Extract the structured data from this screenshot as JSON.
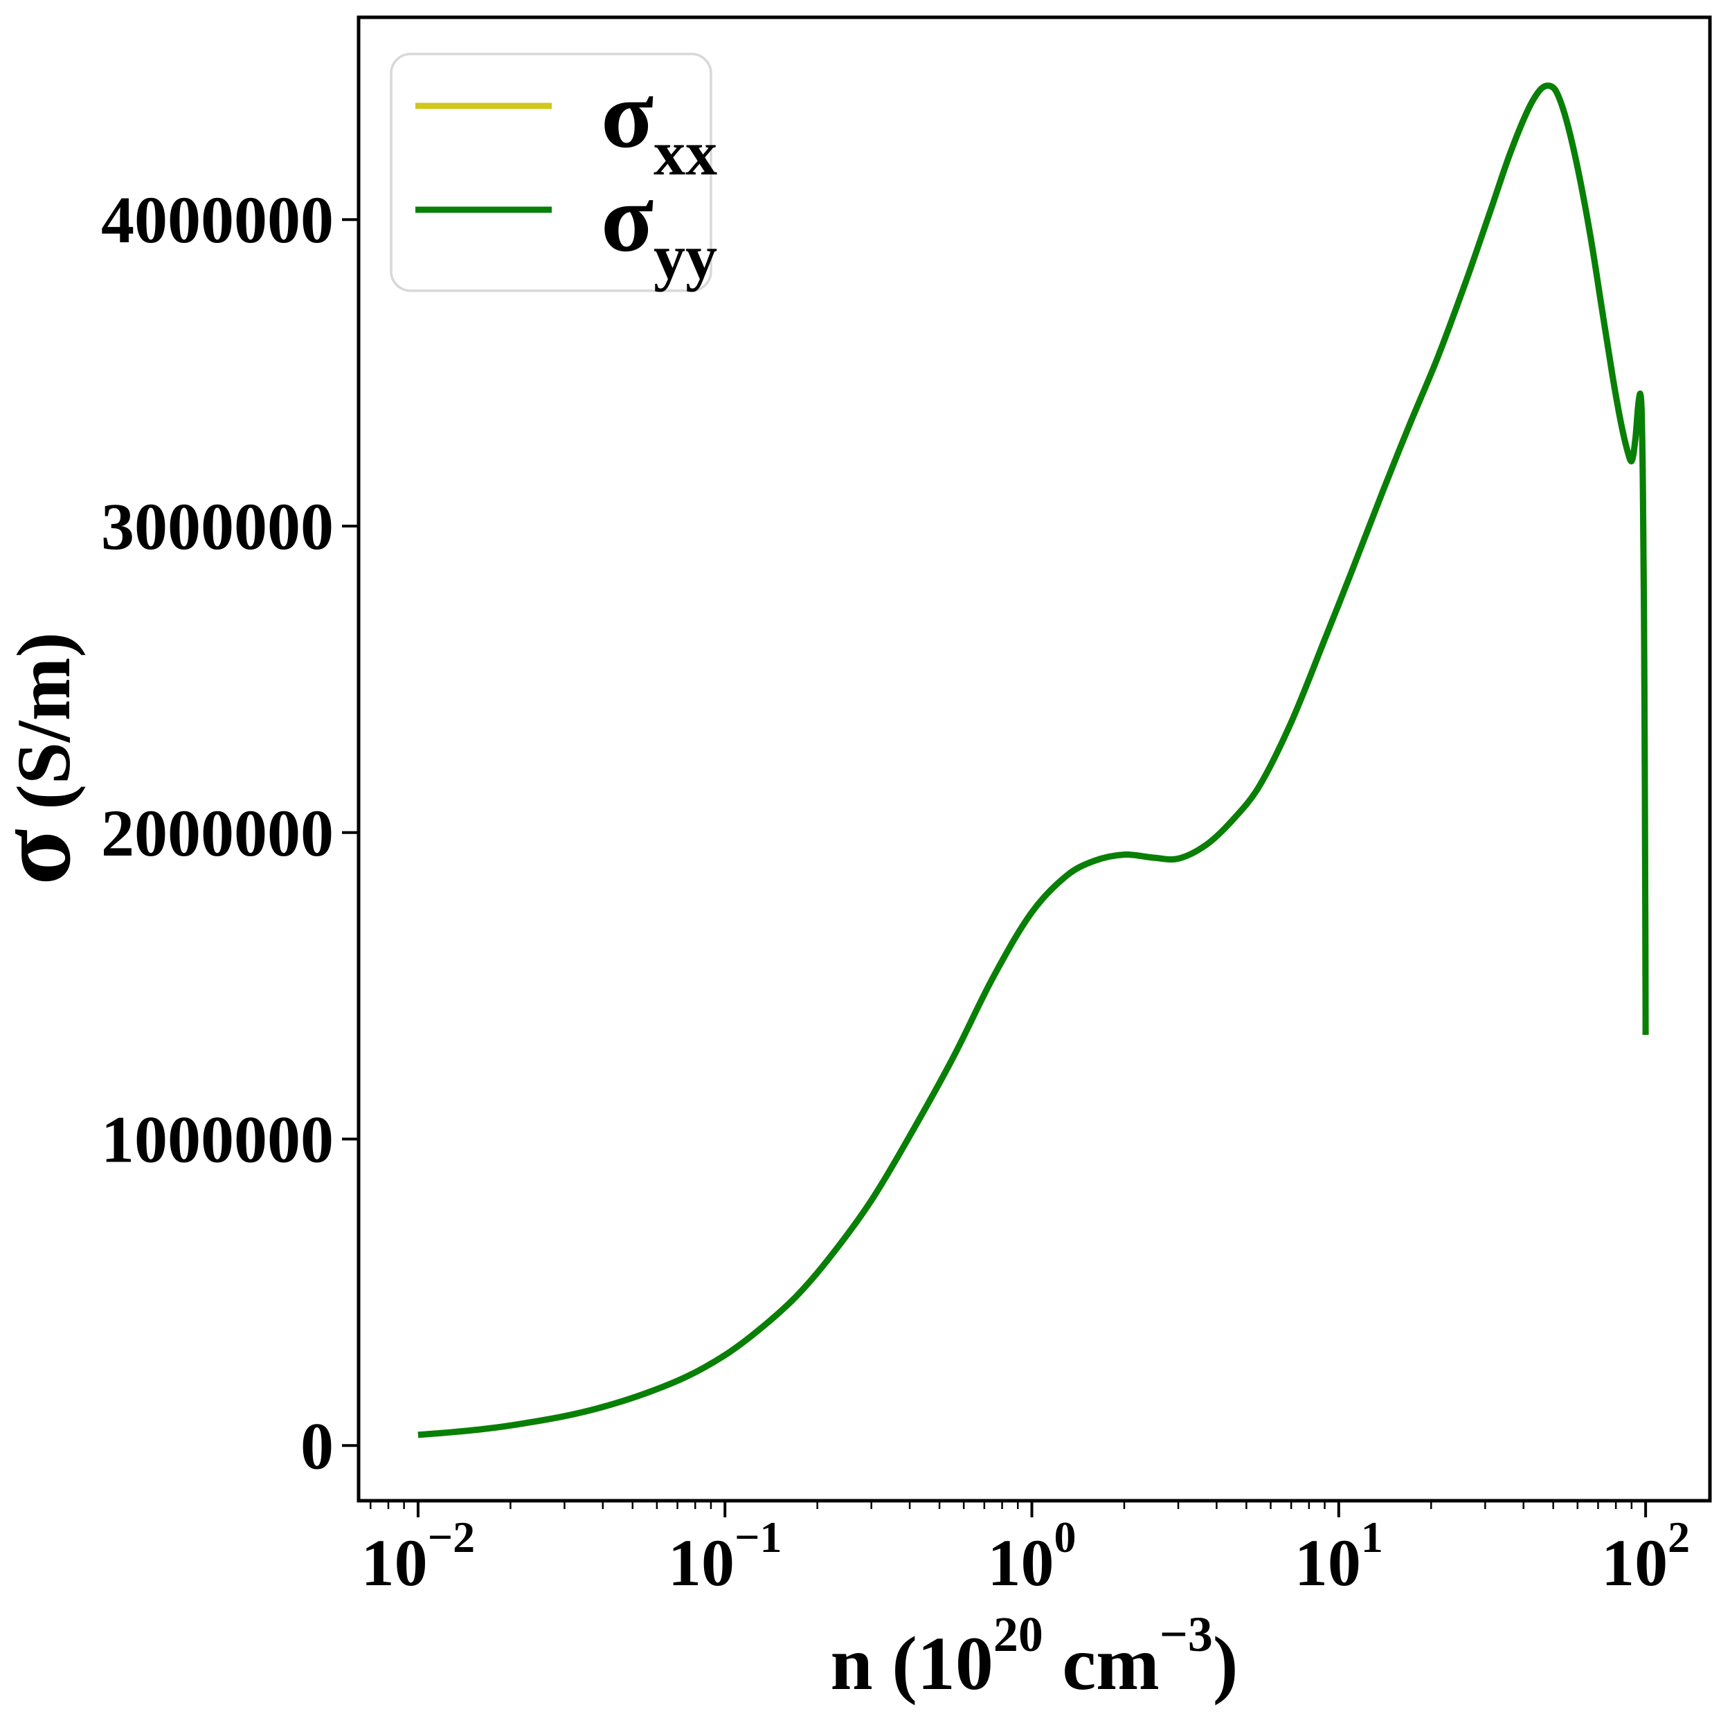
{
  "figure": {
    "background": "#ffffff",
    "spine_color": "#000000",
    "labels": {
      "y_axis": {
        "sigma": "σ",
        "rest": " (S/m)"
      },
      "x_axis": {
        "prefix": "n (10",
        "sup1": "20",
        "mid": " cm",
        "sup2": "−3",
        "suffix": ")"
      }
    }
  },
  "chart_data": {
    "type": "line",
    "x_scale": "log",
    "title": "",
    "xlabel": "n (10^20 cm^-3)",
    "ylabel": "σ (S/m)",
    "xlim": [
      0.0064,
      162
    ],
    "ylim": [
      -180000,
      4660000
    ],
    "grid": false,
    "legend_position": "upper-left",
    "x_major_ticks": [
      0.01,
      0.1,
      1,
      10,
      100
    ],
    "x_tick_labels": [
      {
        "base": "10",
        "exp": "−2"
      },
      {
        "base": "10",
        "exp": "−1"
      },
      {
        "base": "10",
        "exp": "0"
      },
      {
        "base": "10",
        "exp": "1"
      },
      {
        "base": "10",
        "exp": "2"
      }
    ],
    "y_ticks": [
      0,
      1000000,
      2000000,
      3000000,
      4000000
    ],
    "y_tick_labels": [
      "0",
      "1000000",
      "2000000",
      "3000000",
      "4000000"
    ],
    "x": [
      0.01,
      0.013,
      0.017,
      0.022,
      0.03,
      0.04,
      0.055,
      0.075,
      0.1,
      0.13,
      0.17,
      0.22,
      0.3,
      0.4,
      0.55,
      0.75,
      1.0,
      1.3,
      1.6,
      2.0,
      2.5,
      3.0,
      3.7,
      4.5,
      5.5,
      7.0,
      9.0,
      11,
      14,
      17,
      21,
      26,
      31,
      36,
      41,
      45,
      48,
      51,
      55,
      60,
      66,
      72,
      78,
      83,
      87,
      90,
      92.5,
      94.5,
      96,
      97,
      98,
      98.8,
      99.4,
      99.8,
      100
    ],
    "series": [
      {
        "name": "sigma-xx",
        "label_base": "σ",
        "label_sub": "xx",
        "color": "#d1c71d",
        "values": [
          35000,
          44000,
          56000,
          72000,
          96000,
          126000,
          170000,
          225000,
          295000,
          380000,
          485000,
          615000,
          800000,
          1010000,
          1260000,
          1530000,
          1740000,
          1860000,
          1908000,
          1928000,
          1918000,
          1915000,
          1960000,
          2040000,
          2150000,
          2360000,
          2630000,
          2850000,
          3120000,
          3330000,
          3550000,
          3800000,
          4020000,
          4210000,
          4350000,
          4420000,
          4437000,
          4420000,
          4330000,
          4170000,
          3950000,
          3710000,
          3490000,
          3340000,
          3250000,
          3212000,
          3280000,
          3390000,
          3432000,
          3380000,
          3120000,
          2700000,
          2150000,
          1700000,
          1340000
        ]
      },
      {
        "name": "sigma-yy",
        "label_base": "σ",
        "label_sub": "yy",
        "color": "#088008",
        "values": [
          35000,
          44000,
          56000,
          72000,
          96000,
          126000,
          170000,
          225000,
          295000,
          380000,
          485000,
          615000,
          800000,
          1010000,
          1260000,
          1530000,
          1740000,
          1860000,
          1908000,
          1928000,
          1918000,
          1915000,
          1960000,
          2040000,
          2150000,
          2360000,
          2630000,
          2850000,
          3120000,
          3330000,
          3550000,
          3800000,
          4020000,
          4210000,
          4350000,
          4420000,
          4437000,
          4420000,
          4330000,
          4170000,
          3950000,
          3710000,
          3490000,
          3340000,
          3250000,
          3212000,
          3280000,
          3390000,
          3432000,
          3380000,
          3120000,
          2700000,
          2150000,
          1700000,
          1340000
        ]
      }
    ]
  }
}
